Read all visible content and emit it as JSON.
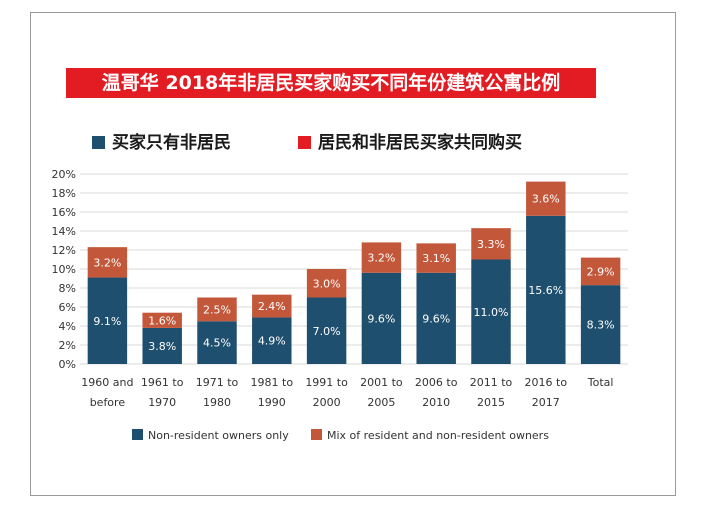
{
  "header": {
    "title": "温哥华 2018年非居民买家购买不同年份建筑公寓比例"
  },
  "top_legend": {
    "a_label": "买家只有非居民",
    "b_label": "居民和非居民买家共同购买"
  },
  "colors": {
    "title_bg": "#e31b23",
    "non_resident": "#1f4f6e",
    "mix": "#c2573a",
    "red_square": "#e31b23"
  },
  "chart_data": {
    "type": "bar",
    "stacked": true,
    "categories": [
      "1960 and before",
      "1961 to 1970",
      "1971 to 1980",
      "1981 to 1990",
      "1991 to 2000",
      "2001 to 2005",
      "2006 to 2010",
      "2011 to 2015",
      "2016 to 2017",
      "Total"
    ],
    "category_lines": [
      [
        "1960 and",
        "before"
      ],
      [
        "1961 to",
        "1970"
      ],
      [
        "1971 to",
        "1980"
      ],
      [
        "1981 to",
        "1990"
      ],
      [
        "1991 to",
        "2000"
      ],
      [
        "2001 to",
        "2005"
      ],
      [
        "2006 to",
        "2010"
      ],
      [
        "2011 to",
        "2015"
      ],
      [
        "2016 to",
        "2017"
      ],
      [
        "Total",
        ""
      ]
    ],
    "series": [
      {
        "name": "Non-resident owners only",
        "values": [
          9.1,
          3.8,
          4.5,
          4.9,
          7.0,
          9.6,
          9.6,
          11.0,
          15.6,
          8.3
        ],
        "labels": [
          "9.1%",
          "3.8%",
          "4.5%",
          "4.9%",
          "7.0%",
          "9.6%",
          "9.6%",
          "11.0%",
          "15.6%",
          "8.3%"
        ]
      },
      {
        "name": "Mix of resident and non-resident owners",
        "values": [
          3.2,
          1.6,
          2.5,
          2.4,
          3.0,
          3.2,
          3.1,
          3.3,
          3.6,
          2.9
        ],
        "labels": [
          "3.2%",
          "1.6%",
          "2.5%",
          "2.4%",
          "3.0%",
          "3.2%",
          "3.1%",
          "3.3%",
          "3.6%",
          "2.9%"
        ]
      }
    ],
    "yticks": [
      "0%",
      "2%",
      "4%",
      "6%",
      "8%",
      "10%",
      "12%",
      "14%",
      "16%",
      "18%",
      "20%"
    ],
    "ylim": [
      0,
      20
    ],
    "grid": true,
    "legend_position": "bottom"
  }
}
